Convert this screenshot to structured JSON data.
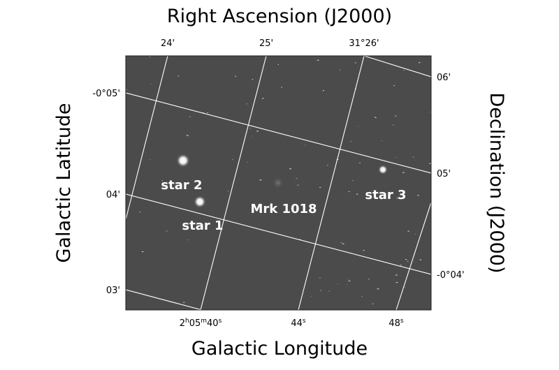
{
  "figure": {
    "titles": {
      "top": "Right Ascension (J2000)",
      "bottom": "Galactic Longitude",
      "left": "Galactic Latitude",
      "right": "Declination (J2000)"
    },
    "top_ticks": [
      "24'",
      "25'",
      "31°26'"
    ],
    "bottom_ticks": [
      [
        "2",
        "h",
        "05",
        "m",
        "40",
        "s"
      ],
      [
        "44",
        "s"
      ],
      [
        "48",
        "s"
      ]
    ],
    "left_ticks": [
      "-0°05'",
      "04'",
      "03'"
    ],
    "right_ticks": [
      "06'",
      "05'",
      "-0°04'"
    ],
    "labels": [
      "star 2",
      "star 1",
      "Mrk 1018",
      "star 3"
    ]
  }
}
